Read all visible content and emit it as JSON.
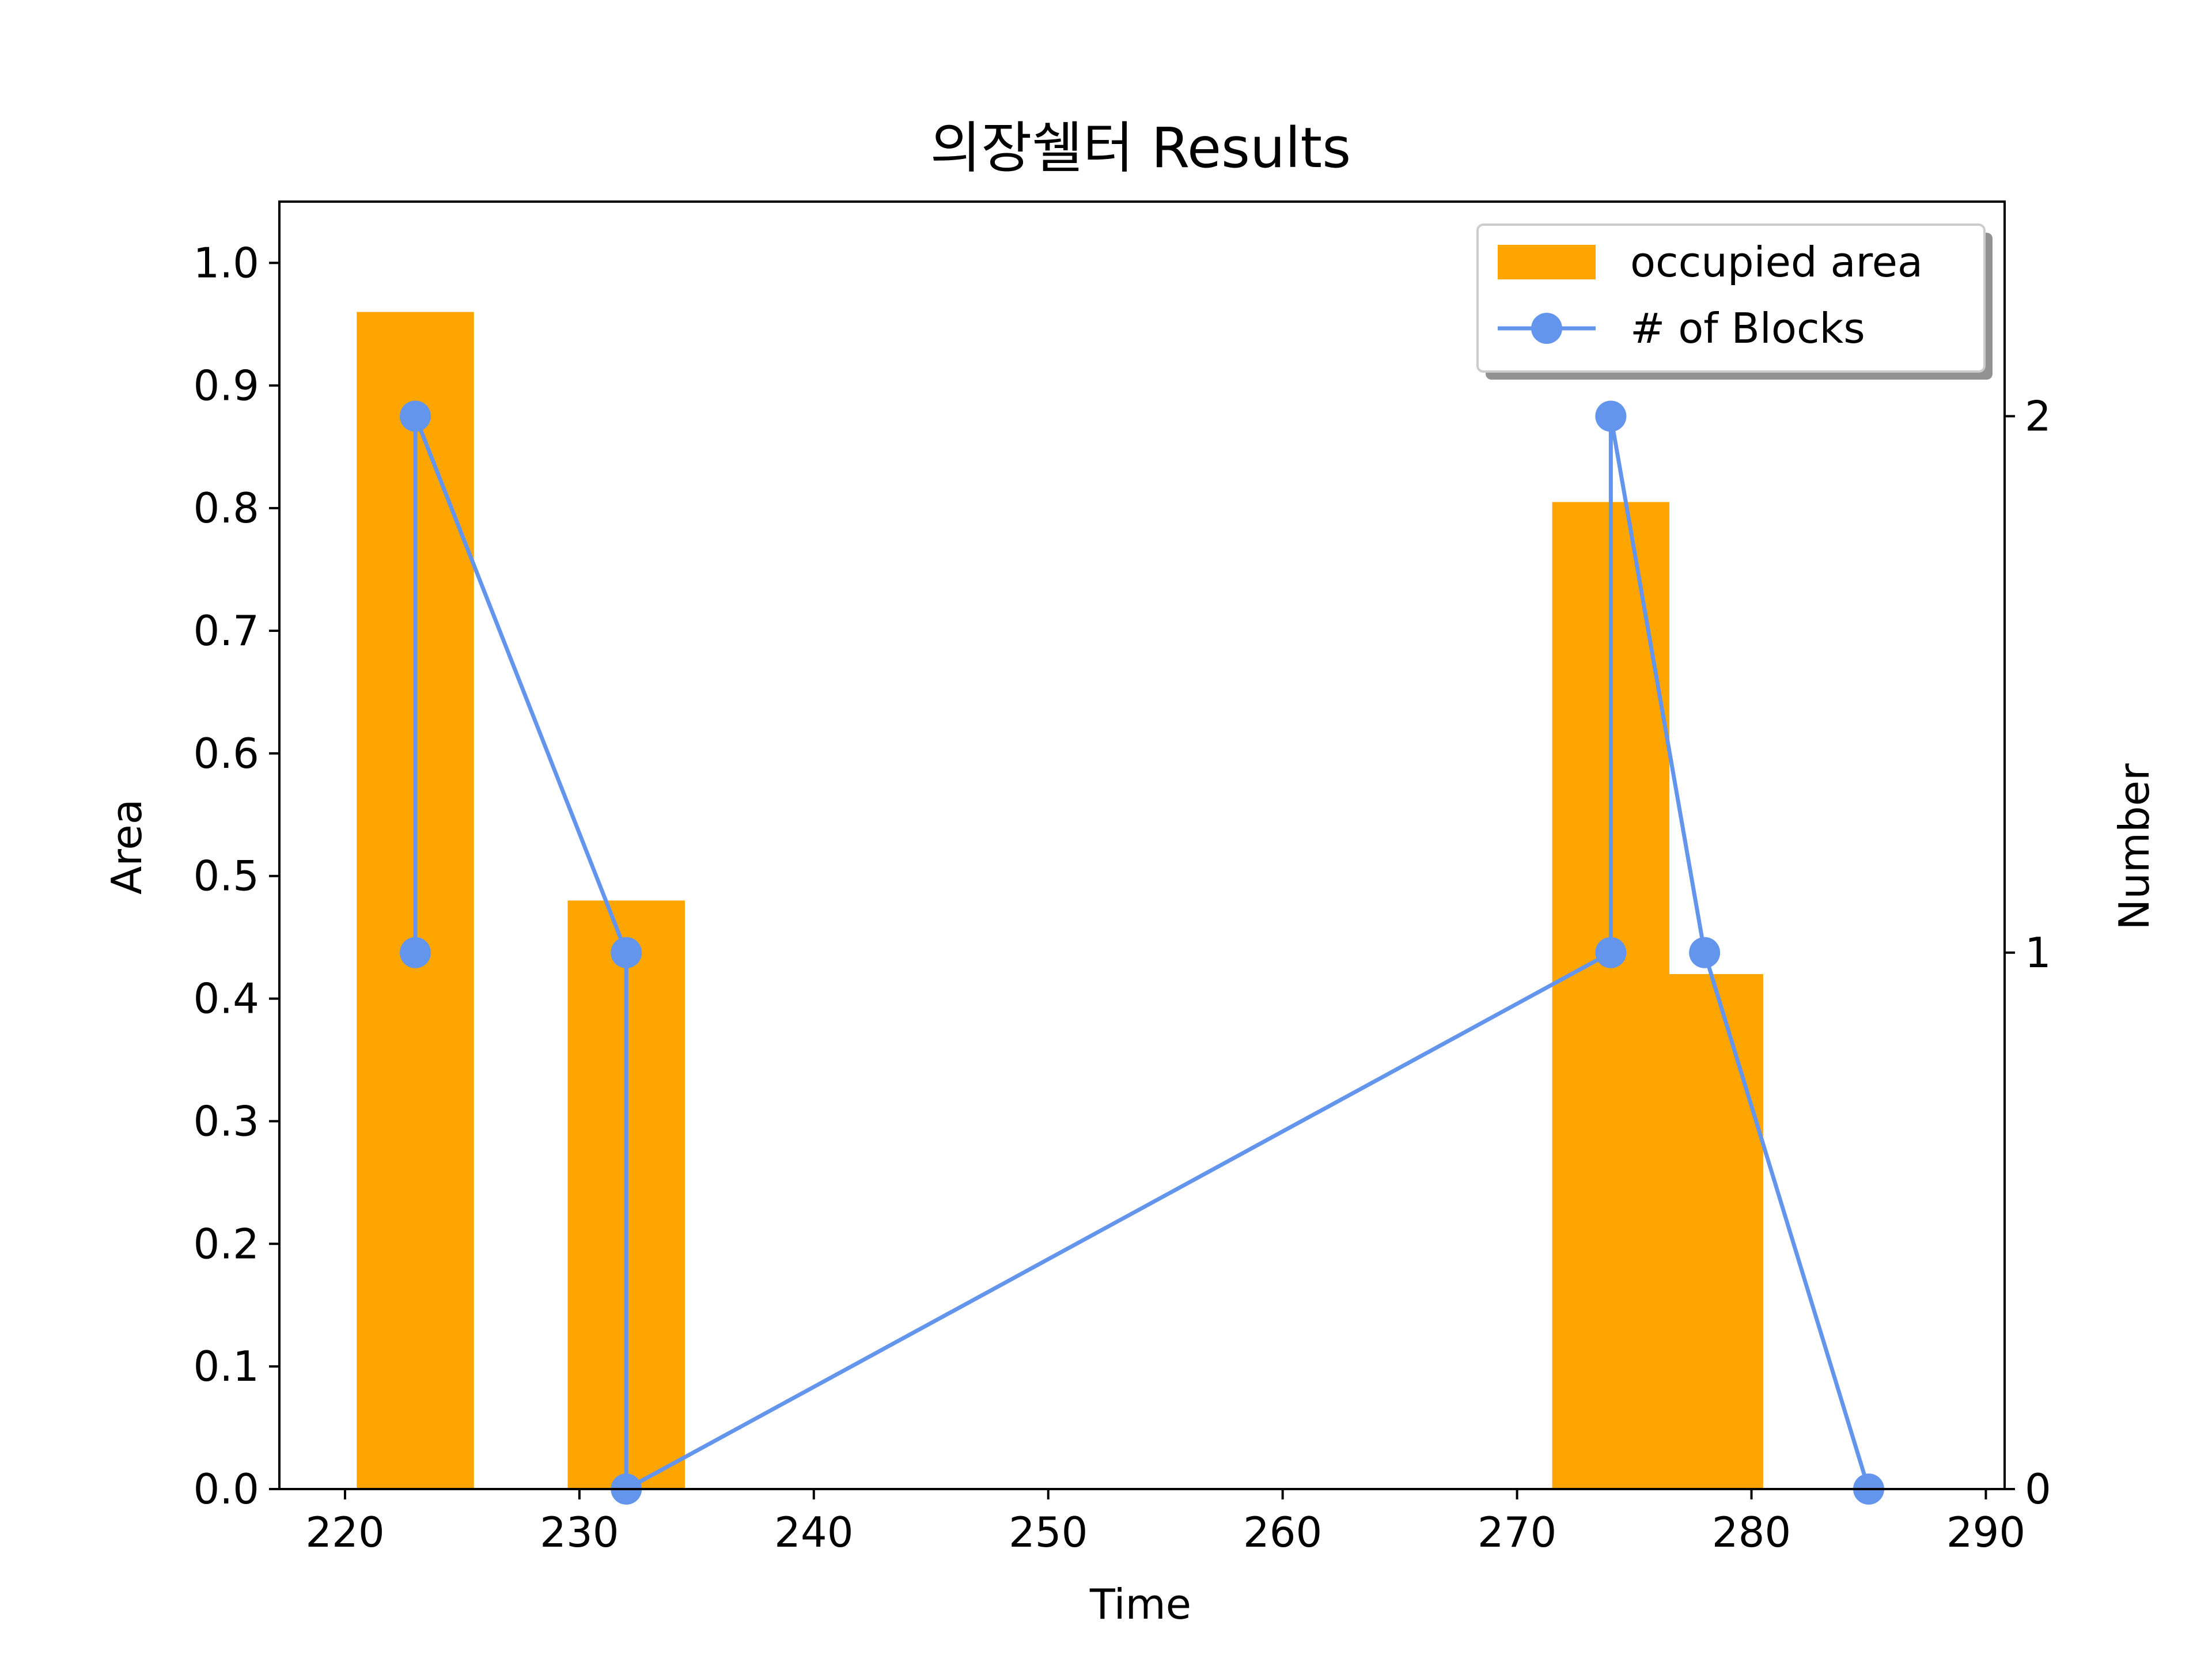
{
  "chart_data": {
    "type": "bar+line",
    "title": "의장쉘터 Results",
    "xlabel": "Time",
    "ylabel_left": "Area",
    "ylabel_right": "Number",
    "xlim": [
      217.2,
      290.8
    ],
    "ylim_left": [
      0,
      1.05
    ],
    "ylim_right": [
      0,
      2.4
    ],
    "x_ticks": [
      220,
      230,
      240,
      250,
      260,
      270,
      280,
      290
    ],
    "y_left_ticks": [
      0.0,
      0.1,
      0.2,
      0.3,
      0.4,
      0.5,
      0.6,
      0.7,
      0.8,
      0.9,
      1.0
    ],
    "y_right_ticks": [
      0,
      1,
      2
    ],
    "bars": {
      "name": "occupied area",
      "color": "#ffa500",
      "width": 5,
      "points": [
        {
          "x": 223,
          "value": 0.96
        },
        {
          "x": 232,
          "value": 0.48
        },
        {
          "x": 274,
          "value": 0.805
        },
        {
          "x": 278,
          "value": 0.42
        }
      ]
    },
    "line": {
      "name": "# of Blocks",
      "color": "#6495ed",
      "marker": "circle",
      "points": [
        {
          "x": 223,
          "y": 1
        },
        {
          "x": 223,
          "y": 2
        },
        {
          "x": 232,
          "y": 1
        },
        {
          "x": 232,
          "y": 0
        },
        {
          "x": 274,
          "y": 1
        },
        {
          "x": 274,
          "y": 2
        },
        {
          "x": 278,
          "y": 1
        },
        {
          "x": 285,
          "y": 0
        }
      ]
    },
    "legend": {
      "position": "top-right",
      "entries": [
        "occupied area",
        "# of Blocks"
      ]
    },
    "grid": false
  }
}
